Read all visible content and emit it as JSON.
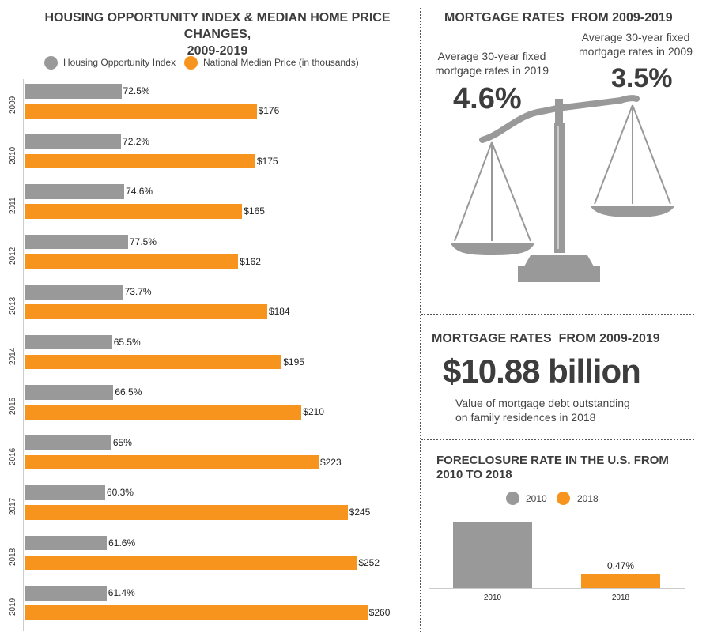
{
  "colors": {
    "gray": "#999999",
    "orange": "#F7941D",
    "text": "#3d3d3d"
  },
  "left_chart": {
    "title_line1": "HOUSING OPPORTUNITY INDEX & MEDIAN HOME PRICE CHANGES,",
    "title_line2": "2009-2019",
    "legend": [
      "Housing Opportunity Index",
      "National Median Price (in thousands)"
    ]
  },
  "scale_section": {
    "title": "MORTGAGE RATES  FROM 2009-2019",
    "left_caption": [
      "Average 30-year fixed",
      "mortgage rates in 2019"
    ],
    "left_value": "4.6%",
    "right_caption": [
      "Average 30-year fixed",
      "mortgage rates in 2009"
    ],
    "right_value": "3.5%"
  },
  "debt_section": {
    "title": "MORTGAGE RATES  FROM 2009-2019",
    "value": "$10.88 billion",
    "caption": [
      "Value of mortgage debt outstanding",
      "on family residences in 2018"
    ]
  },
  "foreclosure_chart": {
    "title_line1": "FORECLOSURE RATE IN THE U.S. FROM",
    "title_line2": "2010 TO 2018",
    "legend": [
      "2010",
      "2018"
    ]
  },
  "chart_data": [
    {
      "type": "bar",
      "orientation": "horizontal",
      "title": "HOUSING OPPORTUNITY INDEX & MEDIAN HOME PRICE CHANGES, 2009-2019",
      "categories": [
        "2009",
        "2010",
        "2011",
        "2012",
        "2013",
        "2014",
        "2015",
        "2016",
        "2017",
        "2018",
        "2019"
      ],
      "series": [
        {
          "name": "Housing Opportunity Index",
          "values": [
            72.5,
            72.2,
            74.6,
            77.5,
            73.7,
            65.5,
            66.5,
            65,
            60.3,
            61.6,
            61.4
          ],
          "labels": [
            "72.5%",
            "72.2%",
            "74.6%",
            "77.5%",
            "73.7%",
            "65.5%",
            "66.5%",
            "65%",
            "60.3%",
            "61.6%",
            "61.4%"
          ]
        },
        {
          "name": "National Median Price (in thousands)",
          "values": [
            176,
            175,
            165,
            162,
            184,
            195,
            210,
            223,
            245,
            252,
            260
          ],
          "labels": [
            "$176",
            "$175",
            "$165",
            "$162",
            "$184",
            "$195",
            "$210",
            "$223",
            "$245",
            "$252",
            "$260"
          ]
        }
      ],
      "legend": "top",
      "grid": false
    },
    {
      "type": "bar",
      "title": "FORECLOSURE RATE IN THE U.S. FROM 2010 TO 2018",
      "categories": [
        "2010",
        "2018"
      ],
      "values": [
        2.23,
        0.47
      ],
      "labels": [
        "",
        "0.47%"
      ],
      "legend": "top",
      "grid": false
    }
  ]
}
